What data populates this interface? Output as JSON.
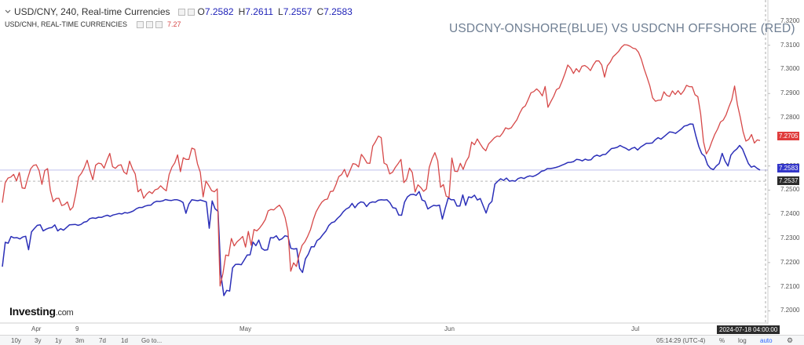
{
  "legend": {
    "main_title": "USD/CNY, 240, Real-time Currencies",
    "open_label": "O",
    "open": "7.2582",
    "high_label": "H",
    "high": "7.2611",
    "low_label": "L",
    "low": "7.2557",
    "close_label": "C",
    "close": "7.2583",
    "second_title": "USD/CNH, REAL-TIME CURRENCIES",
    "second_value": "7.27"
  },
  "watermark_title": "USDCNY-ONSHORE(BLUE) VS USDCNH OFFSHORE (RED)",
  "logo": {
    "main": "Investing",
    "suffix": ".com"
  },
  "colors": {
    "onshore": "#2b2fb8",
    "offshore": "#d64848",
    "axis_text": "#555555",
    "title": "#6f7f93"
  },
  "toolbar": {
    "ranges": [
      "10y",
      "3y",
      "1y",
      "3m",
      "7d",
      "1d"
    ],
    "goto": "Go to...",
    "clock": "05:14:29 (UTC-4)",
    "pct": "%",
    "log": "log",
    "auto": "auto"
  },
  "crosshair_time": "2024-07-18 04:00:00",
  "price_tags": {
    "offshore_last": "7.2705",
    "onshore_last": "7.2583",
    "crosshair": "7.2537"
  },
  "chart_data": {
    "type": "line",
    "title": "USDCNY-ONSHORE(BLUE) VS USDCNH OFFSHORE (RED)",
    "xlabel": "",
    "ylabel": "",
    "ylim": [
      7.1956,
      7.3271
    ],
    "y_ticks": [
      "7.3200",
      "7.3100",
      "7.3000",
      "7.2900",
      "7.2800",
      "7.2600",
      "7.2500",
      "7.2400",
      "7.2300",
      "7.2200",
      "7.2100",
      "7.2000"
    ],
    "x_ticks": [
      "Apr",
      "9",
      "May",
      "Jun",
      "Jul"
    ],
    "series": [
      {
        "name": "USD/CNY",
        "color": "#2b2fb8",
        "values": [
          7.2183,
          7.2284,
          7.228,
          7.2308,
          7.2302,
          7.2303,
          7.2298,
          7.2306,
          7.2309,
          7.2253,
          7.2327,
          7.2341,
          7.2354,
          7.2356,
          7.2331,
          7.2338,
          7.2343,
          7.2345,
          7.2356,
          7.2331,
          7.234,
          7.2334,
          7.2345,
          7.2356,
          7.2357,
          7.2358,
          7.2354,
          7.2358,
          7.2367,
          7.237,
          7.2382,
          7.2385,
          7.2383,
          7.2388,
          7.2387,
          7.2392,
          7.2396,
          7.2391,
          7.2397,
          7.24,
          7.2403,
          7.2401,
          7.2407,
          7.2405,
          7.2409,
          7.2414,
          7.2423,
          7.2428,
          7.2428,
          7.2434,
          7.2437,
          7.2438,
          7.2449,
          7.2454,
          7.2453,
          7.2455,
          7.2461,
          7.2458,
          7.2457,
          7.246,
          7.246,
          7.2456,
          7.2449,
          7.2404,
          7.2442,
          7.246,
          7.2458,
          7.2456,
          7.2459,
          7.2455,
          7.2451,
          7.2342,
          7.2455,
          7.2423,
          7.2412,
          7.215,
          7.2063,
          7.2085,
          7.2082,
          7.2178,
          7.2192,
          7.2193,
          7.2191,
          7.2211,
          7.2231,
          7.2232,
          7.2285,
          7.227,
          7.2293,
          7.2259,
          7.2251,
          7.2253,
          7.2303,
          7.2302,
          7.2311,
          7.2293,
          7.2299,
          7.2311,
          7.2308,
          7.2259,
          7.2256,
          7.2258,
          7.2176,
          7.2159,
          7.2215,
          7.2235,
          7.2265,
          7.2265,
          7.2291,
          7.23,
          7.2316,
          7.233,
          7.2353,
          7.2365,
          7.2369,
          7.2383,
          7.2394,
          7.2411,
          7.2422,
          7.2428,
          7.2445,
          7.2427,
          7.2443,
          7.2451,
          7.2449,
          7.2432,
          7.2447,
          7.2451,
          7.245,
          7.2458,
          7.246,
          7.2459,
          7.246,
          7.2448,
          7.2427,
          7.2425,
          7.2397,
          7.2396,
          7.245,
          7.2472,
          7.2481,
          7.2483,
          7.2478,
          7.2494,
          7.2459,
          7.2454,
          7.2422,
          7.243,
          7.2437,
          7.2435,
          7.2438,
          7.238,
          7.2426,
          7.2468,
          7.246,
          7.246,
          7.2434,
          7.2434,
          7.248,
          7.2437,
          7.2472,
          7.2469,
          7.2479,
          7.2459,
          7.2465,
          7.2435,
          7.2405,
          7.2441,
          7.2453,
          7.2525,
          7.2537,
          7.2547,
          7.254,
          7.255,
          7.2537,
          7.2539,
          7.2537,
          7.2548,
          7.2552,
          7.2548,
          7.2555,
          7.2559,
          7.2556,
          7.2561,
          7.2568,
          7.2578,
          7.2581,
          7.2589,
          7.2589,
          7.2591,
          7.2594,
          7.2598,
          7.2603,
          7.2608,
          7.2614,
          7.2615,
          7.2618,
          7.2627,
          7.2626,
          7.2621,
          7.2628,
          7.2624,
          7.2626,
          7.2639,
          7.2645,
          7.264,
          7.2647,
          7.2648,
          7.266,
          7.2672,
          7.2674,
          7.2677,
          7.2685,
          7.2678,
          7.2673,
          7.2665,
          7.2673,
          7.2677,
          7.2666,
          7.2678,
          7.2686,
          7.2694,
          7.2694,
          7.2695,
          7.2708,
          7.2717,
          7.2711,
          7.2721,
          7.2731,
          7.2741,
          7.2739,
          7.2735,
          7.2744,
          7.2753,
          7.2765,
          7.2768,
          7.2774,
          7.2773,
          7.2724,
          7.268,
          7.2651,
          7.264,
          7.2605,
          7.259,
          7.2585,
          7.26,
          7.261,
          7.2652,
          7.262,
          7.26,
          7.2645,
          7.266,
          7.267,
          7.2685,
          7.267,
          7.264,
          7.261,
          7.2595,
          7.26,
          7.259,
          7.2583
        ]
      },
      {
        "name": "USD/CNH",
        "color": "#d64848",
        "values": [
          7.2448,
          7.253,
          7.255,
          7.2554,
          7.2565,
          7.2538,
          7.2573,
          7.2509,
          7.2507,
          7.255,
          7.2588,
          7.2602,
          7.2605,
          7.2581,
          7.2524,
          7.2581,
          7.2589,
          7.2498,
          7.2452,
          7.2465,
          7.2466,
          7.2436,
          7.244,
          7.2451,
          7.2417,
          7.243,
          7.2486,
          7.2555,
          7.257,
          7.2593,
          7.2624,
          7.2581,
          7.2543,
          7.2603,
          7.2612,
          7.2609,
          7.2591,
          7.2624,
          7.2652,
          7.2597,
          7.259,
          7.2602,
          7.2605,
          7.2575,
          7.2566,
          7.262,
          7.2589,
          7.2567,
          7.2493,
          7.2504,
          7.2466,
          7.2483,
          7.2494,
          7.2486,
          7.2501,
          7.2505,
          7.2518,
          7.2506,
          7.2497,
          7.2564,
          7.2595,
          7.2613,
          7.2646,
          7.2576,
          7.2634,
          7.2627,
          7.2627,
          7.2674,
          7.2669,
          7.2609,
          7.2574,
          7.2472,
          7.2538,
          7.2519,
          7.2498,
          7.2493,
          7.2505,
          7.2103,
          7.2154,
          7.2231,
          7.2228,
          7.23,
          7.2269,
          7.2286,
          7.2296,
          7.2308,
          7.2264,
          7.2329,
          7.2272,
          7.2337,
          7.2331,
          7.2343,
          7.2359,
          7.2378,
          7.2414,
          7.242,
          7.2418,
          7.2429,
          7.2438,
          7.242,
          7.2387,
          7.2331,
          7.2164,
          7.2199,
          7.2184,
          7.2233,
          7.2271,
          7.2286,
          7.2309,
          7.2337,
          7.2378,
          7.2411,
          7.2432,
          7.245,
          7.246,
          7.2463,
          7.2494,
          7.2496,
          7.2523,
          7.2556,
          7.2564,
          7.2586,
          7.2554,
          7.2582,
          7.261,
          7.2607,
          7.2596,
          7.2648,
          7.2632,
          7.2612,
          7.2611,
          7.2682,
          7.2701,
          7.2724,
          7.2717,
          7.2612,
          7.2605,
          7.2567,
          7.2574,
          7.2594,
          7.261,
          7.2627,
          7.2531,
          7.2545,
          7.2591,
          7.2573,
          7.2492,
          7.2522,
          7.2511,
          7.2495,
          7.2505,
          7.2594,
          7.263,
          7.2655,
          7.2621,
          7.2512,
          7.2523,
          7.2475,
          7.247,
          7.2633,
          7.2578,
          7.2577,
          7.2611,
          7.2586,
          7.2618,
          7.2638,
          7.2699,
          7.2688,
          7.2712,
          7.2692,
          7.2674,
          7.2663,
          7.2691,
          7.2703,
          7.2716,
          7.2724,
          7.2722,
          7.2737,
          7.2758,
          7.2753,
          7.2758,
          7.2775,
          7.2791,
          7.2818,
          7.284,
          7.2849,
          7.2875,
          7.2903,
          7.2908,
          7.2919,
          7.2908,
          7.289,
          7.2929,
          7.2843,
          7.2866,
          7.2888,
          7.2916,
          7.2923,
          7.2951,
          7.2982,
          7.3018,
          7.3005,
          7.2983,
          7.3003,
          7.2989,
          7.3013,
          7.3016,
          7.3008,
          7.2995,
          7.3018,
          7.3035,
          7.3035,
          7.3018,
          7.2968,
          7.3015,
          7.303,
          7.3052,
          7.3063,
          7.3075,
          7.3092,
          7.3102,
          7.3101,
          7.3096,
          7.3088,
          7.3085,
          7.3071,
          7.3042,
          7.3002,
          7.2968,
          7.2932,
          7.2882,
          7.2868,
          7.2872,
          7.2873,
          7.2907,
          7.2892,
          7.2888,
          7.2911,
          7.2896,
          7.2912,
          7.2896,
          7.2911,
          7.2934,
          7.2928,
          7.2928,
          7.2895,
          7.2887,
          7.2815,
          7.2701,
          7.265,
          7.267,
          7.2702,
          7.2731,
          7.2753,
          7.2782,
          7.279,
          7.2812,
          7.2845,
          7.2874,
          7.2931,
          7.2854,
          7.2802,
          7.2742,
          7.2703,
          7.271,
          7.273,
          7.2695,
          7.2708,
          7.2705
        ]
      }
    ]
  }
}
